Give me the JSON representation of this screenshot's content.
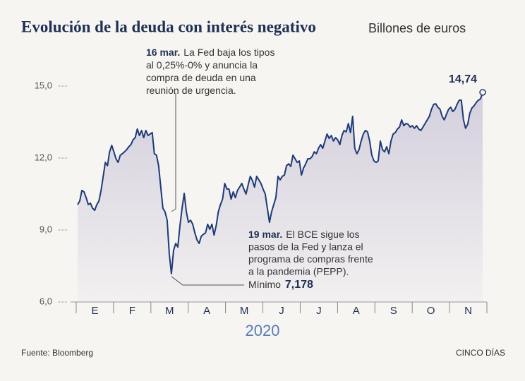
{
  "chart_data": {
    "type": "line",
    "title": "Evolución de la deuda con interés negativo",
    "subtitle": "Billones de euros",
    "xlabel": "2020",
    "source": "Fuente: Bloomberg",
    "brand": "CINCO DÍAS",
    "months": [
      "E",
      "F",
      "M",
      "A",
      "M",
      "J",
      "J",
      "A",
      "S",
      "O",
      "N"
    ],
    "color": "#1e3a78",
    "ylim": [
      6,
      15
    ],
    "yticks": [
      {
        "value": 6,
        "label": "6,0"
      },
      {
        "value": 9,
        "label": "9,0"
      },
      {
        "value": 12,
        "label": "12,0"
      },
      {
        "value": 15,
        "label": "15,0"
      }
    ],
    "values": [
      10.06,
      10.21,
      10.65,
      10.59,
      10.35,
      10.06,
      10.12,
      9.91,
      9.82,
      10.06,
      10.21,
      10.65,
      11.24,
      11.82,
      11.68,
      12.26,
      12.53,
      12.26,
      11.97,
      11.82,
      12.12,
      12.18,
      12.26,
      12.35,
      12.47,
      12.56,
      12.76,
      12.85,
      13.21,
      12.94,
      13.15,
      12.85,
      13.15,
      12.94,
      13.0,
      13.06,
      12.18,
      12.12,
      11.68,
      10.79,
      9.91,
      9.76,
      9.41,
      8.0,
      7.178,
      8.15,
      8.44,
      8.29,
      9.18,
      9.91,
      10.53,
      9.76,
      9.32,
      9.41,
      9.24,
      8.88,
      8.59,
      8.44,
      8.74,
      8.82,
      8.88,
      9.24,
      9.03,
      9.24,
      8.79,
      9.18,
      9.76,
      10.06,
      10.29,
      10.94,
      10.71,
      10.71,
      10.29,
      10.59,
      10.35,
      10.65,
      10.79,
      10.94,
      10.71,
      10.5,
      10.88,
      11.24,
      11.06,
      10.79,
      11.24,
      11.09,
      10.94,
      10.71,
      10.5,
      9.91,
      9.32,
      9.76,
      10.06,
      10.35,
      11.24,
      11.09,
      11.24,
      11.29,
      11.68,
      11.76,
      11.65,
      12.12,
      11.97,
      11.82,
      11.88,
      11.29,
      11.59,
      11.76,
      11.97,
      11.97,
      12.06,
      12.26,
      12.18,
      12.41,
      12.56,
      12.41,
      12.71,
      13.0,
      12.82,
      12.94,
      12.71,
      12.85,
      12.76,
      12.56,
      12.94,
      13.15,
      13.09,
      13.44,
      13.06,
      13.74,
      12.41,
      12.18,
      12.35,
      12.71,
      13.0,
      13.15,
      13.09,
      12.71,
      12.12,
      11.88,
      11.82,
      11.88,
      12.71,
      12.35,
      12.26,
      12.47,
      12.18,
      12.71,
      13.0,
      13.06,
      13.21,
      13.29,
      13.59,
      13.35,
      13.44,
      13.41,
      13.29,
      13.35,
      13.24,
      13.35,
      13.21,
      13.15,
      13.29,
      13.44,
      13.59,
      13.74,
      14.03,
      14.24,
      14.26,
      14.12,
      14.03,
      13.74,
      13.59,
      13.82,
      14.03,
      14.12,
      13.94,
      14.03,
      14.24,
      14.41,
      14.41,
      13.59,
      13.24,
      13.41,
      13.88,
      14.09,
      14.18,
      14.32,
      14.41,
      14.47,
      14.74
    ],
    "value_labels": {
      "44": "7,178",
      "190": "14,74"
    },
    "annotations": [
      {
        "bold": "16 mar.",
        "lines": [
          "La Fed baja los tipos",
          "al 0,25%-0% y anuncia la",
          "compra de deuda en una",
          "reunión de urgencia."
        ]
      },
      {
        "bold": "19 mar.",
        "lines": [
          "El BCE sigue los",
          "pasos de la Fed y lanza el",
          "programa de compras frente",
          "a la pandemia (PEPP)."
        ],
        "min_text": "Mínimo"
      }
    ]
  }
}
